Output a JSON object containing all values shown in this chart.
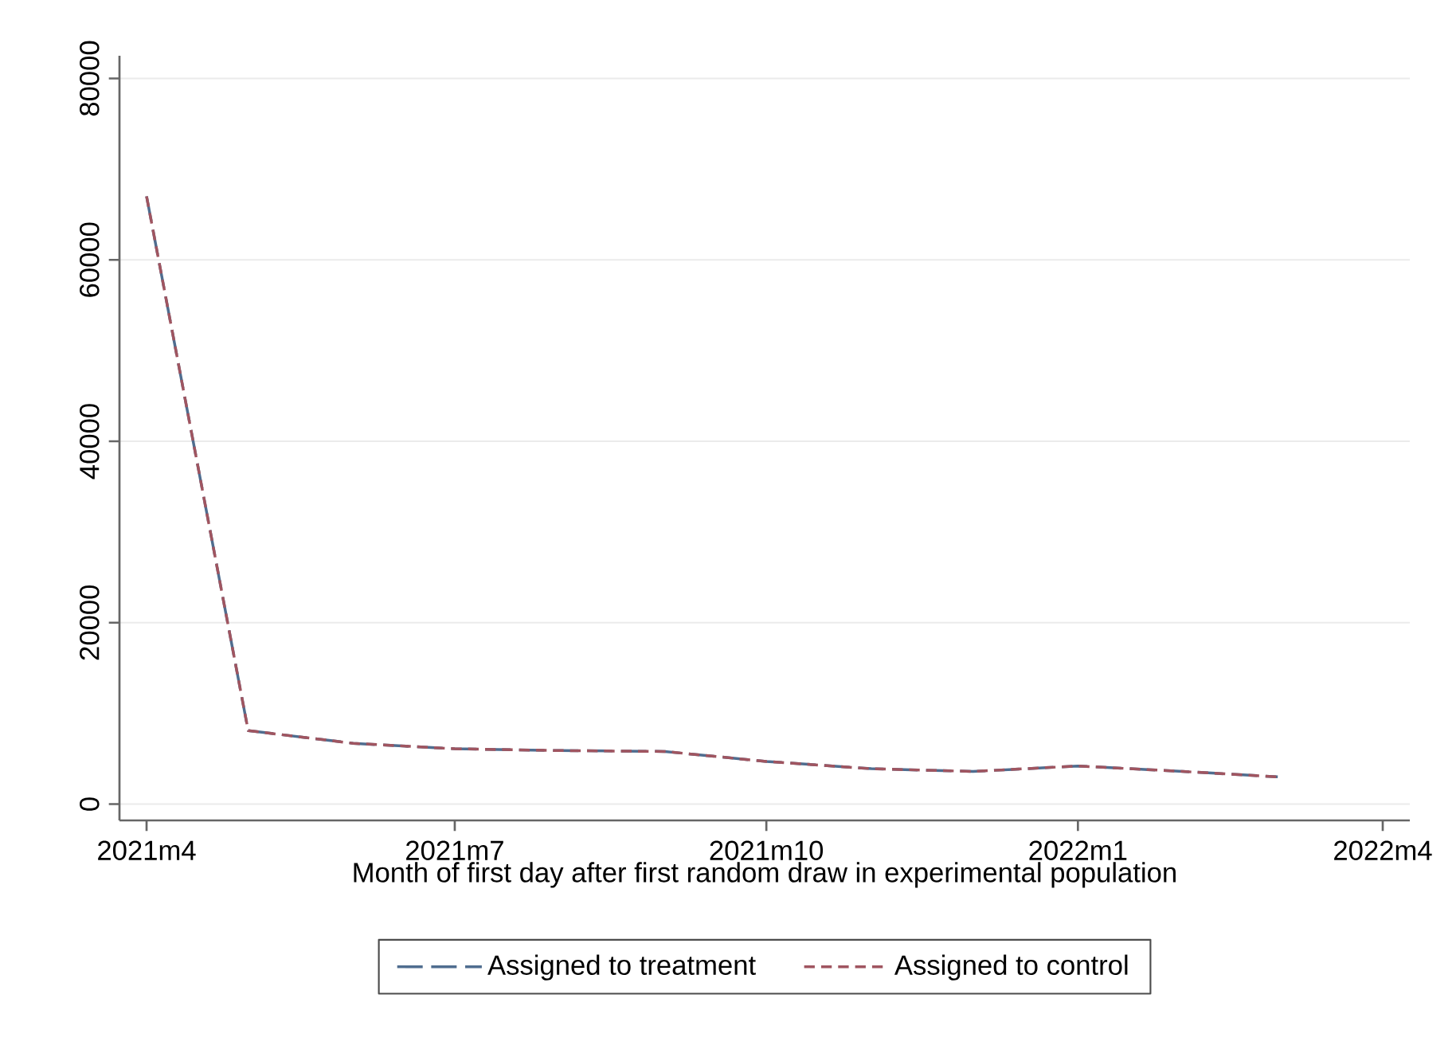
{
  "chart_data": {
    "type": "line",
    "xlabel": "Month of first day after first random draw in experimental population",
    "x": [
      "2021-04",
      "2021-05",
      "2021-06",
      "2021-07",
      "2021-08",
      "2021-09",
      "2021-10",
      "2021-11",
      "2021-12",
      "2022-01",
      "2022-02",
      "2022-03"
    ],
    "series": [
      {
        "name": "Assigned to treatment",
        "color": "#4f6d8f",
        "line_style": "dashed",
        "values": [
          67000,
          8100,
          6700,
          6100,
          5900,
          5800,
          4700,
          3900,
          3600,
          4200,
          3600,
          3000
        ]
      },
      {
        "name": "Assigned to control",
        "color": "#a05560",
        "line_style": "dashed",
        "values": [
          67000,
          8100,
          6700,
          6100,
          5900,
          5800,
          4700,
          3900,
          3600,
          4200,
          3600,
          3000
        ]
      }
    ],
    "xlim": [
      "2021-03-24",
      "2022-04-09"
    ],
    "xticks": [
      {
        "value": "2021-04",
        "label": "2021m4"
      },
      {
        "value": "2021-07",
        "label": "2021m7"
      },
      {
        "value": "2021-10",
        "label": "2021m10"
      },
      {
        "value": "2022-01",
        "label": "2022m1"
      },
      {
        "value": "2022-04",
        "label": "2022m4"
      }
    ],
    "ylim": [
      -1800,
      82500
    ],
    "yticks": [
      0,
      20000,
      40000,
      60000,
      80000
    ],
    "grid": "y",
    "legend": "bottom",
    "marker": "none"
  }
}
